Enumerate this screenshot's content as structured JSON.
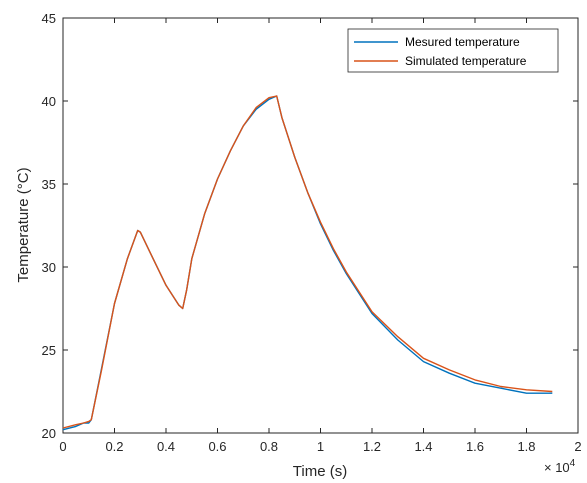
{
  "chart_data": {
    "type": "line",
    "title": "",
    "xlabel": "Time (s)",
    "ylabel": "Temperature (°C)",
    "x_exponent_label": "× 10",
    "x_exponent_power": "4",
    "xlim": [
      0,
      2
    ],
    "ylim": [
      20,
      45
    ],
    "x_ticks": [
      "0",
      "0.2",
      "0.4",
      "0.6",
      "0.8",
      "1",
      "1.2",
      "1.4",
      "1.6",
      "1.8",
      "2"
    ],
    "y_ticks": [
      "20",
      "25",
      "30",
      "35",
      "40",
      "45"
    ],
    "grid": false,
    "legend_position": "top-right",
    "series": [
      {
        "name": "Mesured temperature",
        "color": "#0072BD",
        "x": [
          0,
          0.05,
          0.08,
          0.1,
          0.11,
          0.15,
          0.2,
          0.25,
          0.29,
          0.3,
          0.35,
          0.4,
          0.45,
          0.465,
          0.48,
          0.5,
          0.55,
          0.6,
          0.65,
          0.7,
          0.75,
          0.8,
          0.83,
          0.85,
          0.9,
          0.95,
          1.0,
          1.05,
          1.1,
          1.2,
          1.3,
          1.4,
          1.5,
          1.6,
          1.7,
          1.8,
          1.9
        ],
        "y": [
          20.2,
          20.4,
          20.6,
          20.6,
          20.8,
          23.9,
          27.8,
          30.5,
          32.2,
          32.1,
          30.5,
          28.9,
          27.7,
          27.5,
          28.6,
          30.5,
          33.2,
          35.3,
          37.0,
          38.5,
          39.5,
          40.1,
          40.3,
          39.0,
          36.6,
          34.5,
          32.6,
          31.0,
          29.6,
          27.2,
          25.6,
          24.3,
          23.6,
          23.0,
          22.7,
          22.4,
          22.4
        ]
      },
      {
        "name": "Simulated temperature",
        "color": "#D95319",
        "x": [
          0,
          0.05,
          0.08,
          0.1,
          0.11,
          0.15,
          0.2,
          0.25,
          0.29,
          0.3,
          0.35,
          0.4,
          0.45,
          0.465,
          0.48,
          0.5,
          0.55,
          0.6,
          0.65,
          0.7,
          0.75,
          0.8,
          0.83,
          0.85,
          0.9,
          0.95,
          1.0,
          1.05,
          1.1,
          1.2,
          1.3,
          1.4,
          1.5,
          1.6,
          1.7,
          1.8,
          1.9
        ],
        "y": [
          20.3,
          20.5,
          20.6,
          20.7,
          20.8,
          23.8,
          27.8,
          30.5,
          32.2,
          32.1,
          30.5,
          28.9,
          27.7,
          27.5,
          28.6,
          30.5,
          33.2,
          35.3,
          37.0,
          38.5,
          39.6,
          40.2,
          40.3,
          39.0,
          36.6,
          34.5,
          32.7,
          31.1,
          29.7,
          27.3,
          25.8,
          24.5,
          23.8,
          23.2,
          22.8,
          22.6,
          22.5
        ]
      }
    ]
  }
}
